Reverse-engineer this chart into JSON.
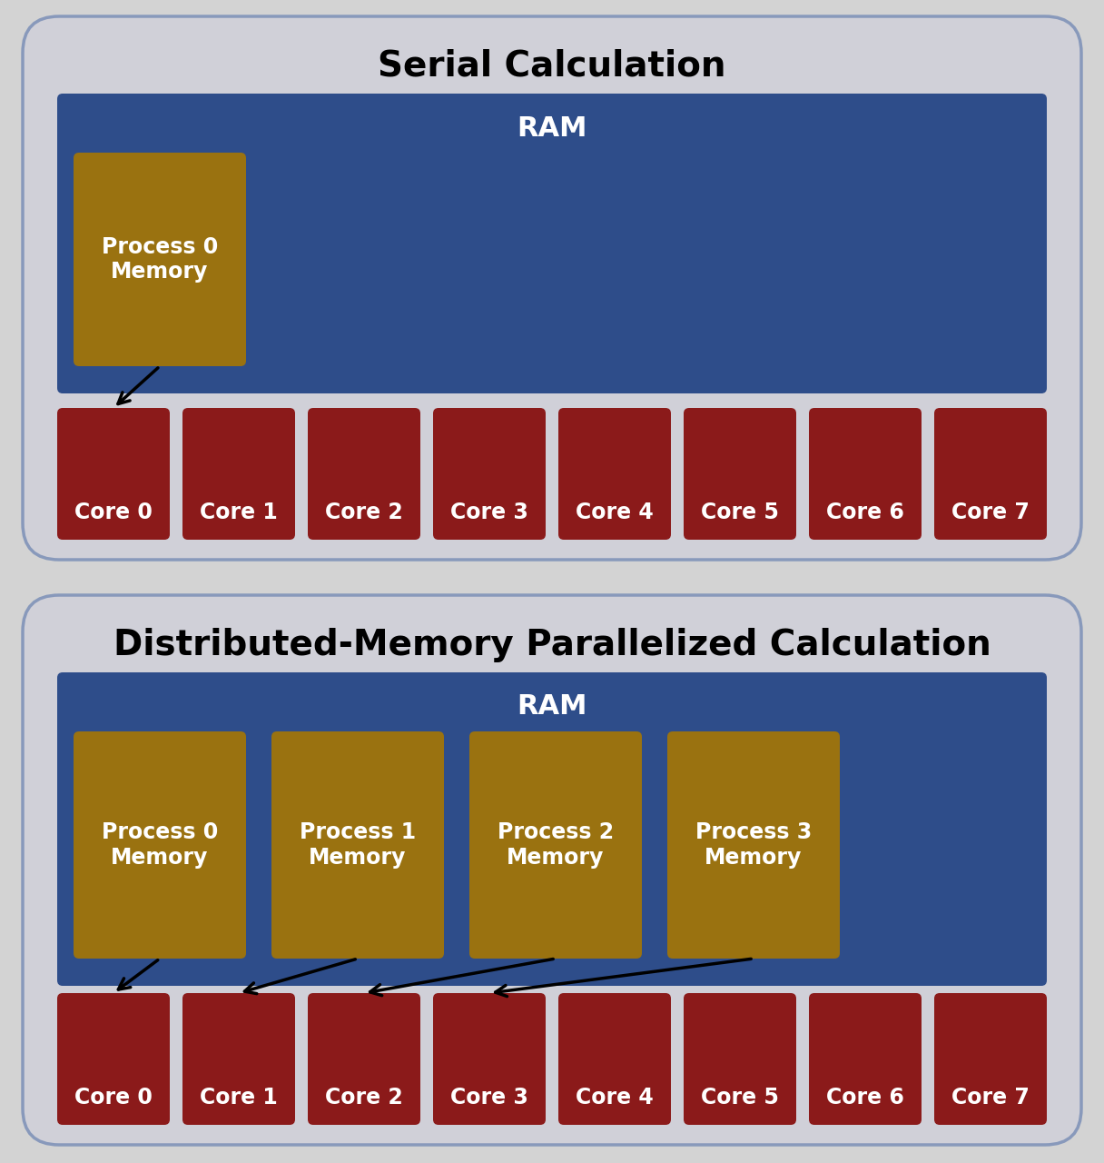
{
  "bg_color": "#d3d3d3",
  "outer_box_facecolor": "#d0d0d8",
  "outer_box_edgecolor": "#8899bb",
  "ram_color": "#2e4d8a",
  "process_color": "#9a7210",
  "core_color": "#8b1a1a",
  "text_white": "#ffffff",
  "text_black": "#000000",
  "title1": "Serial Calculation",
  "title2": "Distributed-Memory Parallelized Calculation",
  "ram_label": "RAM",
  "core_labels": [
    "Core 0",
    "Core 1",
    "Core 2",
    "Core 3",
    "Core 4",
    "Core 5",
    "Core 6",
    "Core 7"
  ],
  "serial_process_label": "Process 0\nMemory",
  "parallel_process_labels": [
    "Process 0\nMemory",
    "Process 1\nMemory",
    "Process 2\nMemory",
    "Process 3\nMemory"
  ],
  "title_fontsize": 28,
  "ram_fontsize": 22,
  "core_fontsize": 17,
  "process_fontsize": 17
}
